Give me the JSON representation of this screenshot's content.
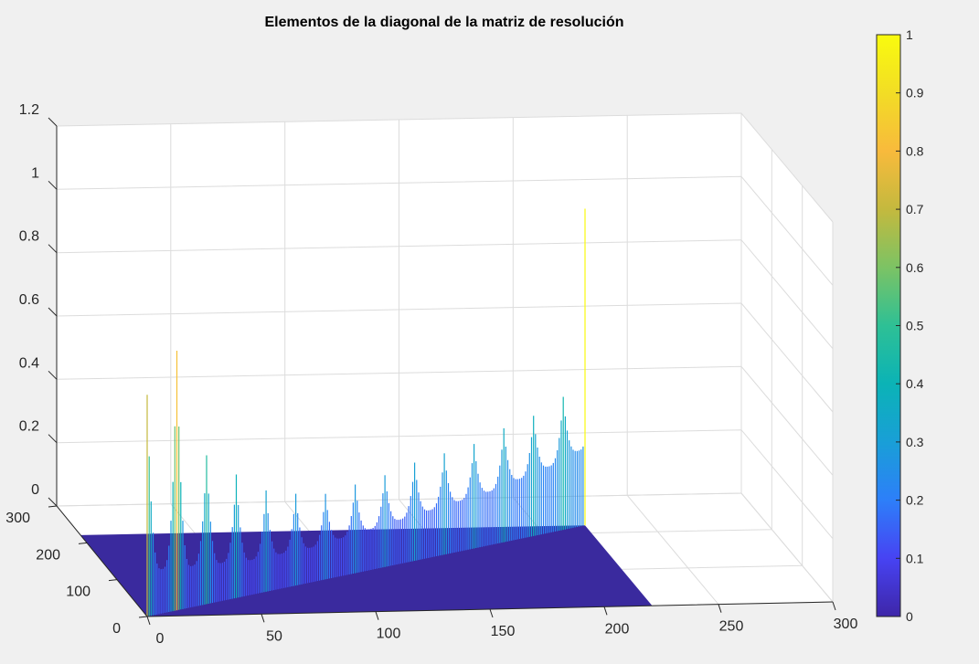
{
  "figure": {
    "background": "#f0f0f0",
    "axes_background": "#ffffff",
    "grid_color": "#dcdcdc",
    "floor_color": "#3a2a9e"
  },
  "chart_data": {
    "type": "surface3d",
    "title": "Elementos de la diagonal de la matriz de resolución",
    "xlabel": "",
    "ylabel": "",
    "zlabel": "",
    "xlim": [
      0,
      300
    ],
    "ylim": [
      0,
      300
    ],
    "zlim": [
      0,
      1.2
    ],
    "xticks": [
      "0",
      "50",
      "100",
      "150",
      "200",
      "250",
      "300"
    ],
    "yticks": [
      "0",
      "100",
      "200",
      "300"
    ],
    "zticks": [
      "0",
      "0.2",
      "0.4",
      "0.6",
      "0.8",
      "1",
      "1.2"
    ],
    "grid": true,
    "diagonal_length": 221,
    "period": 15,
    "corner_values": {
      "start": 0.7,
      "end": 1.0
    },
    "cusp_peaks": [
      0.7,
      0.82,
      0.47,
      0.39,
      0.32,
      0.29,
      0.27,
      0.28,
      0.29,
      0.31,
      0.32,
      0.33,
      0.36,
      0.38,
      0.42,
      0.51,
      0.57,
      0.93,
      1.0
    ],
    "trough_values": [
      0.14,
      0.13,
      0.12,
      0.11,
      0.11,
      0.11,
      0.12,
      0.13,
      0.14,
      0.15,
      0.16,
      0.17,
      0.19,
      0.21,
      0.24,
      0.29
    ],
    "colorbar": {
      "limits": [
        0,
        1
      ],
      "ticks": [
        "0",
        "0.1",
        "0.2",
        "0.3",
        "0.4",
        "0.5",
        "0.6",
        "0.7",
        "0.8",
        "0.9",
        "1"
      ],
      "colormap": "parula",
      "colors": [
        "#3e26a8",
        "#4743f3",
        "#2d7ff9",
        "#199fd7",
        "#0bb3b6",
        "#2ec095",
        "#7cc364",
        "#c4b93e",
        "#f8ba3c",
        "#f2dd25",
        "#f9fb0e"
      ]
    }
  }
}
